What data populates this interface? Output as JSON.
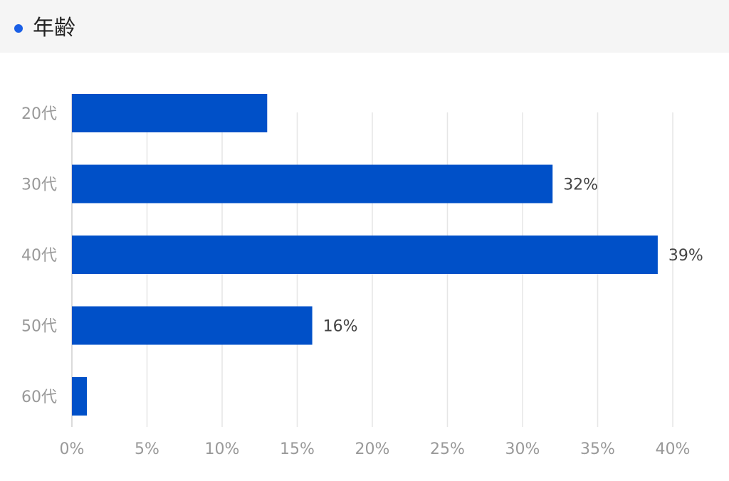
{
  "header": {
    "title": "年齢",
    "accent_color": "#1a5fe6"
  },
  "chart_data": {
    "type": "bar",
    "orientation": "horizontal",
    "categories": [
      "20代",
      "30代",
      "40代",
      "50代",
      "60代"
    ],
    "values": [
      13,
      32,
      39,
      16,
      1
    ],
    "data_labels": [
      null,
      "32%",
      "39%",
      "16%",
      null
    ],
    "xticks": [
      "0%",
      "5%",
      "10%",
      "15%",
      "20%",
      "25%",
      "30%",
      "35%",
      "40%"
    ],
    "xlim": [
      0,
      40
    ],
    "grid": true,
    "bar_color": "#0050c8",
    "title": "",
    "xlabel": "",
    "ylabel": ""
  }
}
